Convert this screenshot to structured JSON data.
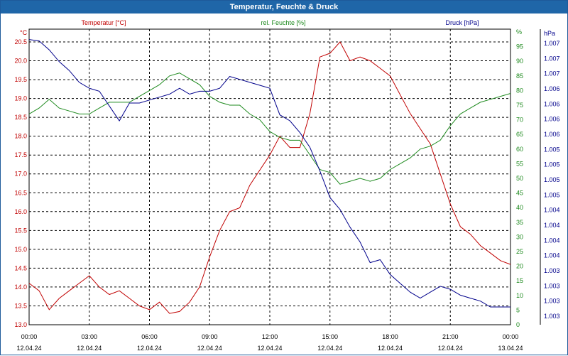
{
  "window_title": "Temperatur, Feuchte & Druck",
  "chart_data": {
    "type": "line",
    "title": "Temperatur, Feuchte & Druck",
    "colors": {
      "temperature": "#c00000",
      "humidity": "#1e8a1e",
      "pressure": "#00008b",
      "title_bar": "#1f66a8"
    },
    "grid": true,
    "x": {
      "range_hours": [
        0,
        24
      ],
      "tick_times": [
        "00:00",
        "03:00",
        "06:00",
        "09:00",
        "12:00",
        "15:00",
        "18:00",
        "21:00",
        "00:00"
      ],
      "tick_dates": [
        "12.04.24",
        "12.04.24",
        "12.04.24",
        "12.04.24",
        "12.04.24",
        "12.04.24",
        "12.04.24",
        "12.04.24",
        "13.04.24"
      ]
    },
    "axes": {
      "temperature": {
        "label": "Temperatur [°C]",
        "unit": "°C",
        "ylim": [
          13.0,
          20.5
        ],
        "ticks": [
          "13.0",
          "13.5",
          "14.0",
          "14.5",
          "15.0",
          "15.5",
          "16.0",
          "16.5",
          "17.0",
          "17.5",
          "18.0",
          "18.5",
          "19.0",
          "19.5",
          "20.0",
          "20.5"
        ]
      },
      "humidity": {
        "label": "rel. Feuchte [%]",
        "unit": "%",
        "ylim": [
          0,
          100
        ],
        "ticks": [
          "0",
          "5",
          "10",
          "15",
          "20",
          "25",
          "30",
          "35",
          "40",
          "45",
          "50",
          "55",
          "60",
          "65",
          "70",
          "75",
          "80",
          "85",
          "90",
          "95",
          "%"
        ]
      },
      "pressure": {
        "label": "Druck [hPa]",
        "unit": "hPa",
        "ticks": [
          "1.003",
          "1.003",
          "1.003",
          "1.003",
          "1.004",
          "1.004",
          "1.004",
          "1.004",
          "1.005",
          "1.005",
          "1.005",
          "1.005",
          "1.006",
          "1.006",
          "1.006",
          "1.006",
          "1.007",
          "1.007",
          "1.007",
          "hPa"
        ]
      }
    },
    "series": [
      {
        "name": "Temperatur [°C]",
        "axis": "temperature",
        "x": [
          0,
          0.5,
          1,
          1.5,
          2,
          2.5,
          3,
          3.5,
          4,
          4.5,
          5,
          5.5,
          6,
          6.5,
          7,
          7.5,
          8,
          8.5,
          9,
          9.5,
          10,
          10.5,
          11,
          11.5,
          12,
          12.5,
          13,
          13.5,
          14,
          14.5,
          15,
          15.5,
          16,
          16.5,
          17,
          17.5,
          18,
          18.5,
          19,
          19.5,
          20,
          20.5,
          21,
          21.5,
          22,
          22.5,
          23,
          23.5,
          24
        ],
        "values": [
          14.1,
          13.9,
          13.4,
          13.7,
          13.9,
          14.1,
          14.3,
          14.0,
          13.8,
          13.9,
          13.7,
          13.5,
          13.4,
          13.6,
          13.3,
          13.35,
          13.6,
          14.0,
          14.8,
          15.5,
          16.0,
          16.1,
          16.7,
          17.1,
          17.5,
          18.0,
          17.7,
          17.7,
          18.6,
          20.1,
          20.2,
          20.5,
          20.0,
          20.1,
          20.0,
          19.8,
          19.6,
          19.1,
          18.6,
          18.2,
          17.8,
          17.0,
          16.2,
          15.6,
          15.4,
          15.1,
          14.9,
          14.7,
          14.6
        ]
      },
      {
        "name": "rel. Feuchte [%]",
        "axis": "humidity",
        "x": [
          0,
          0.5,
          1,
          1.5,
          2,
          2.5,
          3,
          3.5,
          4,
          4.5,
          5,
          5.5,
          6,
          6.5,
          7,
          7.5,
          8,
          8.5,
          9,
          9.5,
          10,
          10.5,
          11,
          11.5,
          12,
          12.5,
          13,
          13.5,
          14,
          14.5,
          15,
          15.5,
          16,
          16.5,
          17,
          17.5,
          18,
          18.5,
          19,
          19.5,
          20,
          20.5,
          21,
          21.5,
          22,
          22.5,
          23,
          23.5,
          24
        ],
        "values": [
          72,
          74,
          77,
          74,
          73,
          72,
          72,
          74,
          76,
          76,
          76,
          78,
          80,
          82,
          85,
          86,
          84,
          82,
          78,
          76,
          75,
          75,
          72,
          70,
          66,
          64,
          63,
          63,
          58,
          53,
          52,
          48,
          49,
          50,
          49,
          50,
          53,
          55,
          57,
          60,
          61,
          63,
          68,
          72,
          74,
          76,
          77,
          78,
          79
        ]
      },
      {
        "name": "Druck [hPa]",
        "axis": "pressure",
        "values_in_axis_percent": true,
        "x": [
          0,
          0.5,
          1,
          1.5,
          2,
          2.5,
          3,
          3.5,
          4,
          4.5,
          5,
          5.5,
          6,
          6.5,
          7,
          7.5,
          8,
          8.5,
          9,
          9.5,
          10,
          10.5,
          11,
          11.5,
          12,
          12.5,
          13,
          13.5,
          14,
          14.5,
          15,
          15.5,
          16,
          16.5,
          17,
          17.5,
          18,
          18.5,
          19,
          19.5,
          20,
          20.5,
          21,
          21.5,
          22,
          22.5,
          23,
          23.5,
          24
        ],
        "values": [
          96.5,
          96,
          93,
          89,
          86,
          82,
          80,
          79,
          74,
          69,
          75,
          75,
          76,
          77,
          78,
          80,
          78,
          79,
          79,
          80,
          84,
          83,
          82,
          81,
          80,
          71,
          69,
          65,
          60,
          52,
          43,
          39,
          33,
          28,
          21,
          22,
          17,
          14,
          11,
          9,
          11,
          13,
          12,
          10,
          9,
          8,
          6,
          6,
          6
        ]
      }
    ]
  }
}
